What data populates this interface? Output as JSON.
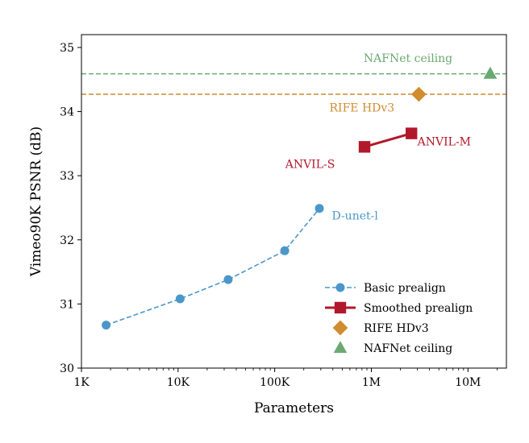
{
  "chart_data": {
    "type": "scatter",
    "xlabel": "Parameters",
    "ylabel": "Vimeo90K PSNR (dB)",
    "xscale": "log",
    "xlim": [
      1000,
      25000000
    ],
    "ylim": [
      30,
      35.2
    ],
    "x_ticks": [
      {
        "value": 1000,
        "label": "1K"
      },
      {
        "value": 10000,
        "label": "10K"
      },
      {
        "value": 100000,
        "label": "100K"
      },
      {
        "value": 1000000,
        "label": "1M"
      },
      {
        "value": 10000000,
        "label": "10M"
      }
    ],
    "y_ticks": [
      30,
      31,
      32,
      33,
      34,
      35
    ],
    "grid": false,
    "legend_position": "lower-right",
    "series": [
      {
        "name": "Basic prealign",
        "color": "#4b97c9",
        "line_style": "dashed",
        "marker": "circle",
        "points": [
          {
            "x": 1800,
            "y": 30.67
          },
          {
            "x": 10500,
            "y": 31.08
          },
          {
            "x": 33000,
            "y": 31.38
          },
          {
            "x": 127000,
            "y": 31.83
          },
          {
            "x": 290000,
            "y": 32.49
          }
        ]
      },
      {
        "name": "Smoothed prealign",
        "color": "#b2182b",
        "line_style": "solid",
        "marker": "square",
        "points": [
          {
            "x": 850000,
            "y": 33.45
          },
          {
            "x": 2600000,
            "y": 33.66
          }
        ]
      },
      {
        "name": "RIFE HDv3",
        "color": "#d08c2f",
        "line_style": "none",
        "marker": "diamond",
        "points": [
          {
            "x": 3100000,
            "y": 34.27
          }
        ]
      },
      {
        "name": "NAFNet ceiling",
        "color": "#6aaa72",
        "line_style": "none",
        "marker": "triangle",
        "points": [
          {
            "x": 17000000,
            "y": 34.59
          }
        ]
      }
    ],
    "reference_lines": [
      {
        "y": 34.59,
        "color": "#6aaa72",
        "style": "dashed"
      },
      {
        "y": 34.27,
        "color": "#d08c2f",
        "style": "dashed"
      }
    ],
    "annotations": [
      {
        "text": "NAFNet ceiling",
        "x": 2400000,
        "y": 34.77,
        "color": "#6aaa72",
        "anchor": "middle"
      },
      {
        "text": "RIFE HDv3",
        "x": 800000,
        "y": 34.0,
        "color": "#d08c2f",
        "anchor": "middle"
      },
      {
        "text": "ANVIL-M",
        "x": 3000000,
        "y": 33.47,
        "color": "#b2182b",
        "anchor": "start"
      },
      {
        "text": "ANVIL-S",
        "x": 420000,
        "y": 33.12,
        "color": "#b2182b",
        "anchor": "end"
      },
      {
        "text": "D-unet-l",
        "x": 390000,
        "y": 32.32,
        "color": "#4b97c9",
        "anchor": "start"
      }
    ]
  }
}
